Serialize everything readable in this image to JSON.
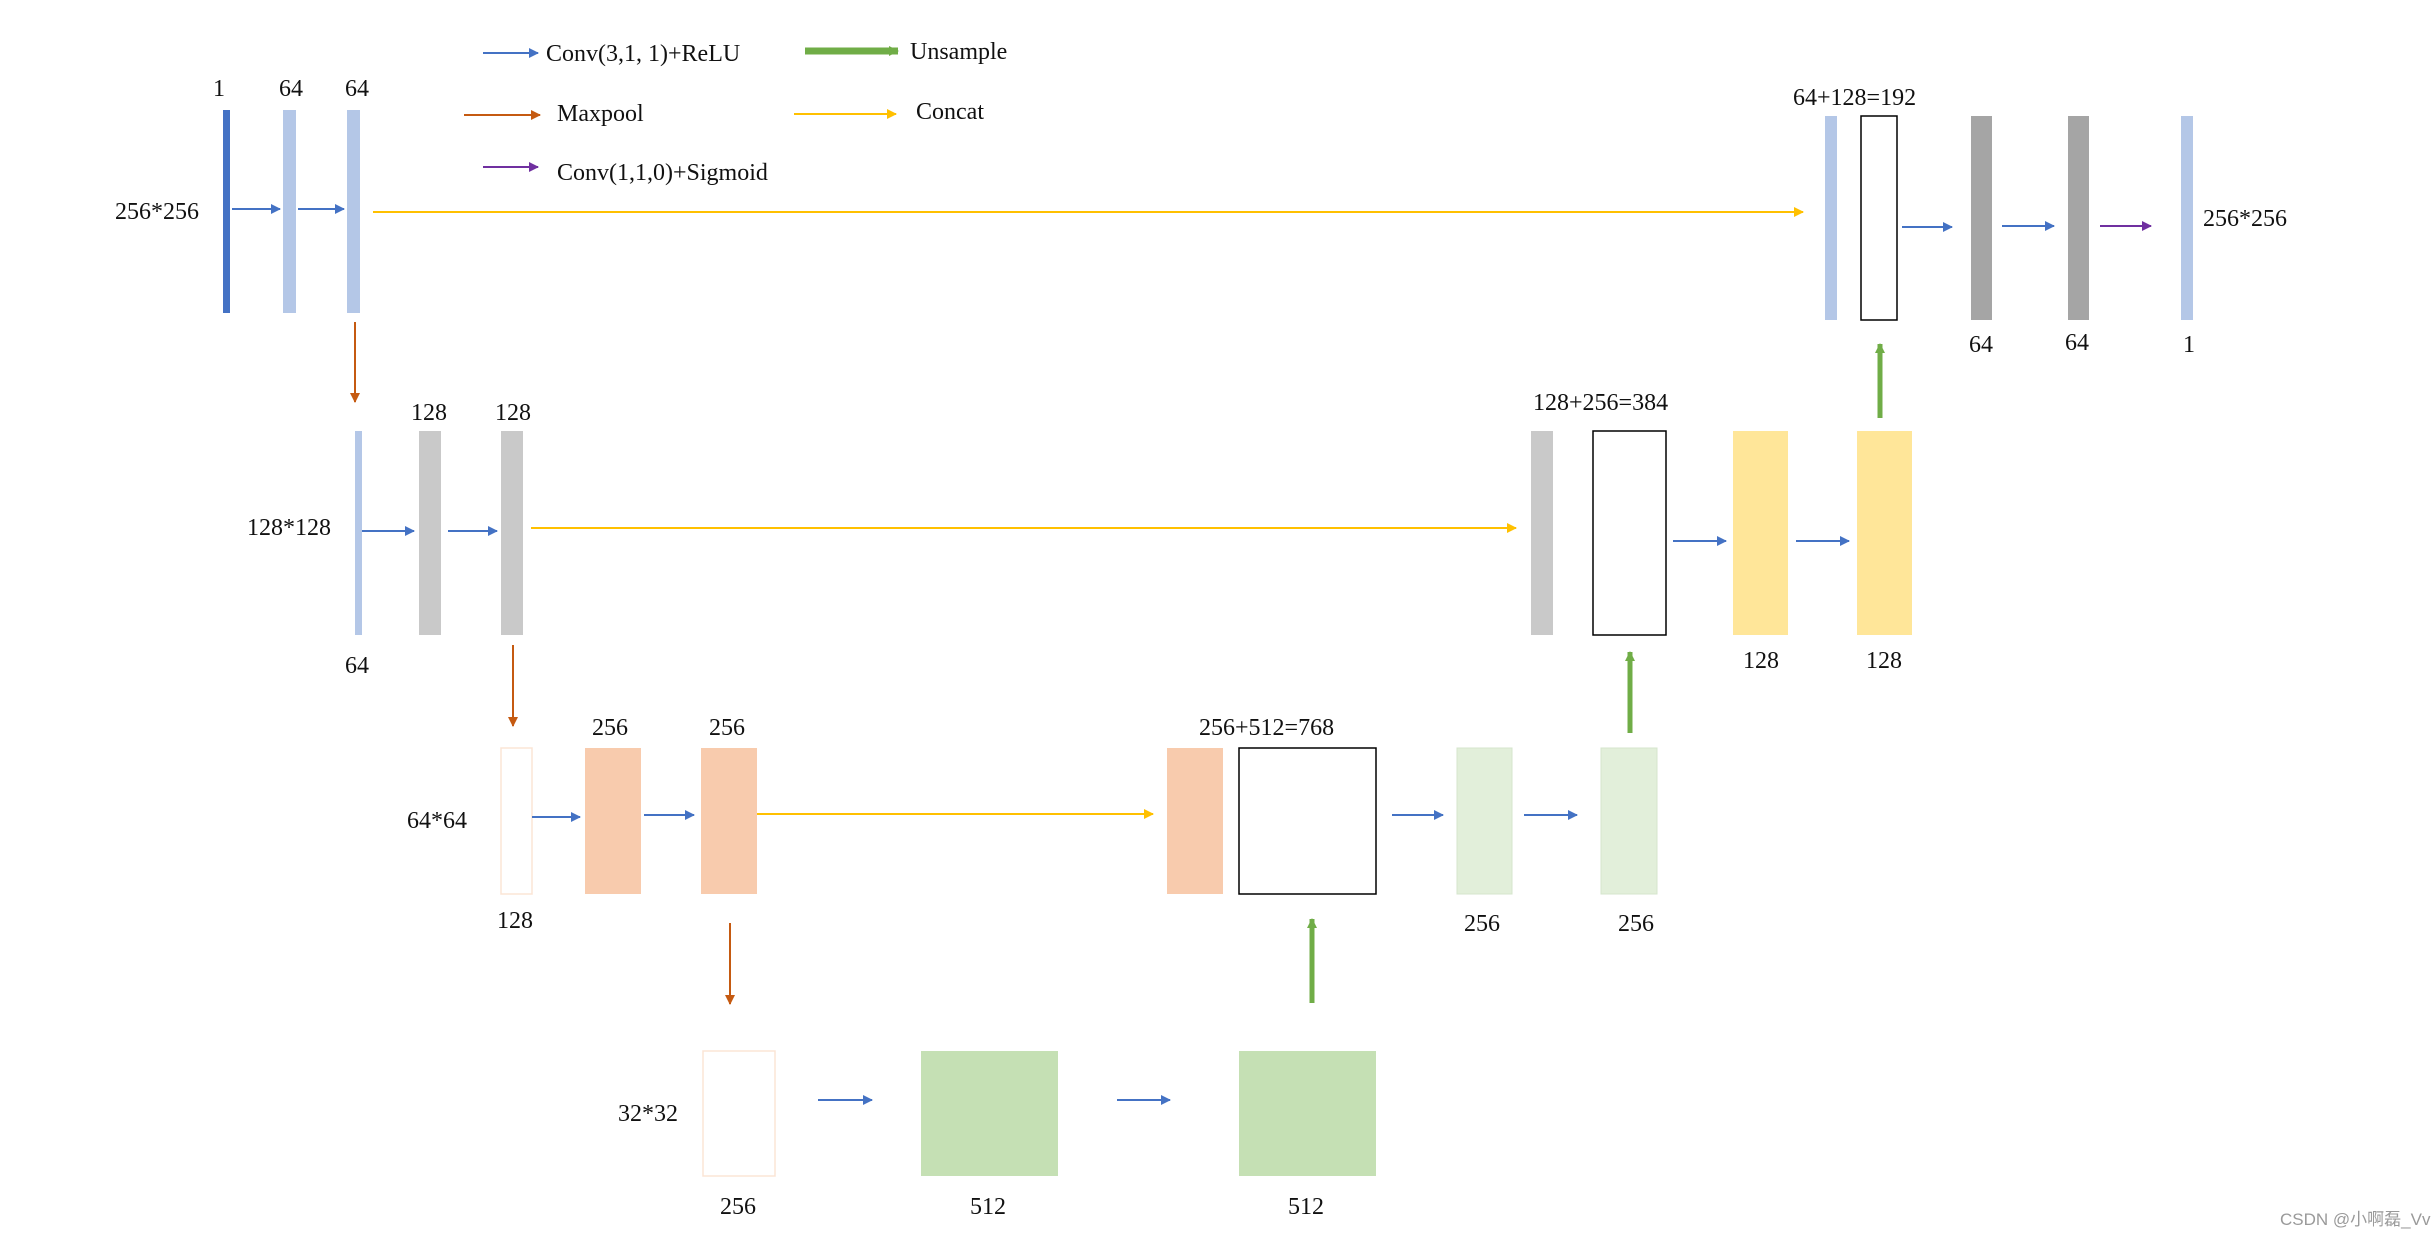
{
  "legend": {
    "conv": "Conv(3,1, 1)+ReLU",
    "upsample": "Unsample",
    "maxpool": "Maxpool",
    "concat": "Concat",
    "final_conv": "Conv(1,1,0)+Sigmoid"
  },
  "colors": {
    "conv_arrow": "#4472c4",
    "upsample_arrow": "#70ad47",
    "maxpool_arrow": "#c55a11",
    "concat_arrow": "#ffc000",
    "final_arrow": "#7030a0",
    "input_bar": "#4472c4",
    "blue_light": "#b4c7e7",
    "gray_light": "#c9c9c9",
    "gray_dark": "#a5a5a5",
    "peach": "#f8cbad",
    "yellow": "#ffe699",
    "green_pale": "#e2efda",
    "green": "#c5e0b4",
    "empty_fill": "#ffffff",
    "empty_stroke": "#000000",
    "faint_stroke": "#fbe5d6"
  },
  "levels": {
    "l1": {
      "size": "256*256",
      "enc": [
        "1",
        "64",
        "64"
      ],
      "concat": "64+128=192",
      "dec": [
        "64",
        "64",
        "1"
      ],
      "out_size": "256*256"
    },
    "l2": {
      "size": "128*128",
      "in_ch": "64",
      "enc": [
        "128",
        "128"
      ],
      "concat": "128+256=384",
      "dec": [
        "128",
        "128"
      ]
    },
    "l3": {
      "size": "64*64",
      "in_ch": "128",
      "enc": [
        "256",
        "256"
      ],
      "concat": "256+512=768",
      "dec": [
        "256",
        "256"
      ]
    },
    "l4": {
      "size": "32*32",
      "blocks": [
        "256",
        "512",
        "512"
      ]
    }
  },
  "watermark": "CSDN @小啊磊_Vv"
}
